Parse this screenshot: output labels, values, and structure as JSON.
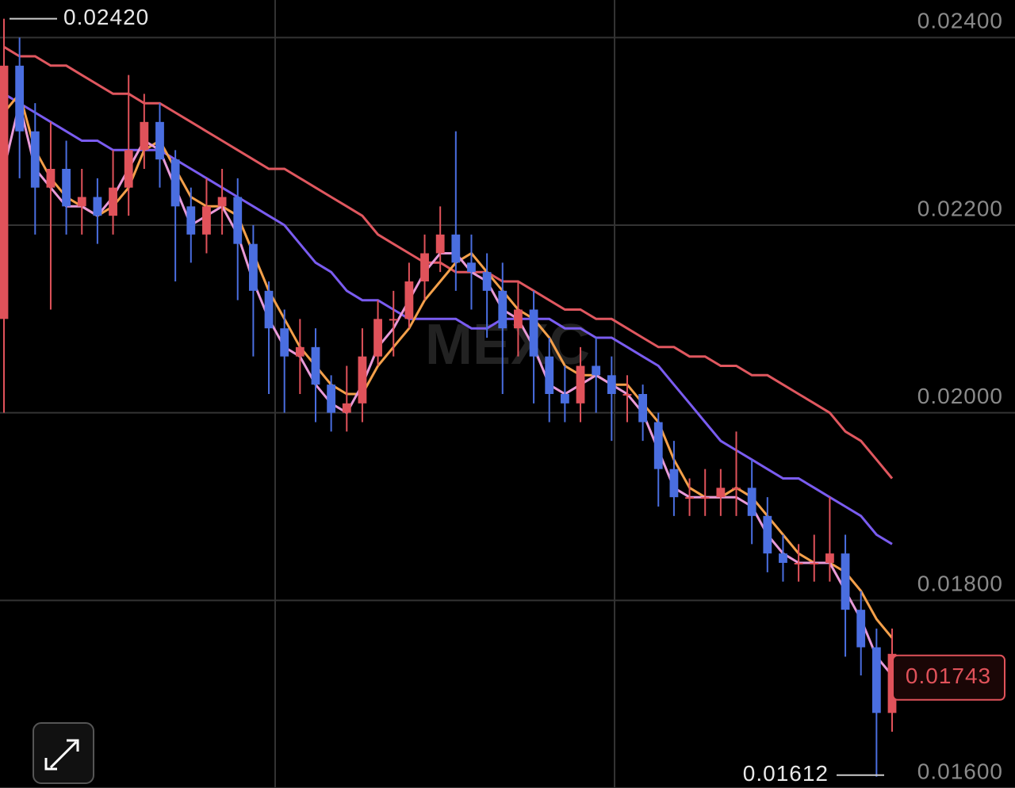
{
  "chart_data": {
    "type": "candlestick",
    "up_color": "#e0525a",
    "down_color": "#4a6ee0",
    "ylim": [
      0.016,
      0.0244
    ],
    "yticks": [
      {
        "value": 0.016,
        "label": "0.01600"
      },
      {
        "value": 0.018,
        "label": "0.01800"
      },
      {
        "value": 0.02,
        "label": "0.02000"
      },
      {
        "value": 0.022,
        "label": "0.02200"
      },
      {
        "value": 0.024,
        "label": "0.02400"
      }
    ],
    "grid": true,
    "watermark": "MEXC",
    "max_label": {
      "value": 0.0242,
      "label": "0.02420"
    },
    "min_label": {
      "value": 0.01612,
      "label": "0.01612"
    },
    "last_price": {
      "value": 0.01743,
      "label": "0.01743"
    },
    "open": [
      0.021,
      0.0237,
      0.023,
      0.0224,
      0.0226,
      0.0222,
      0.0223,
      0.0221,
      0.0224,
      0.0228,
      0.0231,
      0.0227,
      0.0222,
      0.0219,
      0.0222,
      0.0223,
      0.0218,
      0.0213,
      0.0209,
      0.0206,
      0.0207,
      0.0203,
      0.02,
      0.0201,
      0.0206,
      0.021,
      0.021,
      0.0214,
      0.0217,
      0.0219,
      0.0216,
      0.0215,
      0.0213,
      0.0209,
      0.0211,
      0.0206,
      0.0202,
      0.0201,
      0.0205,
      0.0204,
      0.0202,
      0.0202,
      0.0199,
      0.0194,
      0.0191,
      0.0191,
      0.0191,
      0.0192,
      0.0192,
      0.0189,
      0.0185,
      0.0184,
      0.0184,
      0.0184,
      0.0185,
      0.0179,
      0.0175,
      0.0168
    ],
    "high": [
      0.0242,
      0.024,
      0.0233,
      0.0231,
      0.0229,
      0.0226,
      0.0225,
      0.0228,
      0.0236,
      0.0234,
      0.0233,
      0.0228,
      0.0224,
      0.0225,
      0.0226,
      0.0225,
      0.022,
      0.0214,
      0.0211,
      0.021,
      0.0209,
      0.0204,
      0.0205,
      0.0209,
      0.0212,
      0.0213,
      0.0216,
      0.0219,
      0.0222,
      0.023,
      0.0219,
      0.0217,
      0.0216,
      0.0214,
      0.0213,
      0.0208,
      0.0205,
      0.0207,
      0.0208,
      0.0206,
      0.0204,
      0.0203,
      0.02,
      0.0197,
      0.0193,
      0.0194,
      0.0194,
      0.0198,
      0.0195,
      0.0191,
      0.0187,
      0.0186,
      0.0187,
      0.0191,
      0.0187,
      0.0181,
      0.0177,
      0.0177
    ],
    "low": [
      0.02,
      0.0225,
      0.0219,
      0.0211,
      0.0219,
      0.0219,
      0.0218,
      0.0219,
      0.0221,
      0.0226,
      0.0224,
      0.0214,
      0.0216,
      0.0217,
      0.0219,
      0.0212,
      0.0206,
      0.0202,
      0.02,
      0.0202,
      0.0199,
      0.0198,
      0.0198,
      0.0199,
      0.0205,
      0.0206,
      0.0209,
      0.0212,
      0.0215,
      0.0213,
      0.0211,
      0.0208,
      0.0202,
      0.0206,
      0.0201,
      0.0199,
      0.0199,
      0.0199,
      0.02,
      0.0197,
      0.0199,
      0.0197,
      0.019,
      0.0189,
      0.0189,
      0.0189,
      0.0189,
      0.0189,
      0.0186,
      0.0183,
      0.0182,
      0.0182,
      0.0182,
      0.0182,
      0.0174,
      0.0172,
      0.01612,
      0.0166
    ],
    "close": [
      0.0237,
      0.023,
      0.0224,
      0.0226,
      0.0222,
      0.0223,
      0.0221,
      0.0224,
      0.0228,
      0.0231,
      0.0227,
      0.0222,
      0.0219,
      0.0222,
      0.0223,
      0.0218,
      0.0213,
      0.0209,
      0.0206,
      0.0207,
      0.0203,
      0.02,
      0.0201,
      0.0206,
      0.021,
      0.021,
      0.0214,
      0.0217,
      0.0219,
      0.0216,
      0.0215,
      0.0213,
      0.0209,
      0.0211,
      0.0206,
      0.0202,
      0.0201,
      0.0205,
      0.0204,
      0.0202,
      0.0202,
      0.0199,
      0.0194,
      0.0191,
      0.0191,
      0.0191,
      0.0192,
      0.0192,
      0.0189,
      0.0185,
      0.0184,
      0.0184,
      0.0184,
      0.0185,
      0.0179,
      0.0175,
      0.0168,
      0.01743
    ],
    "series": [
      {
        "color": "#e0575f",
        "values": [
          0.0239,
          0.0238,
          0.0238,
          0.0237,
          0.0237,
          0.0236,
          0.0235,
          0.0234,
          0.0234,
          0.0233,
          0.0233,
          0.0232,
          0.0231,
          0.023,
          0.0229,
          0.0228,
          0.0227,
          0.0226,
          0.0226,
          0.0225,
          0.0224,
          0.0223,
          0.0222,
          0.0221,
          0.0219,
          0.0218,
          0.0217,
          0.0216,
          0.0216,
          0.0215,
          0.0215,
          0.0215,
          0.0214,
          0.0214,
          0.0213,
          0.0212,
          0.0211,
          0.0211,
          0.021,
          0.021,
          0.0209,
          0.0208,
          0.0207,
          0.0207,
          0.0206,
          0.0206,
          0.0205,
          0.0205,
          0.0204,
          0.0204,
          0.0203,
          0.0202,
          0.0201,
          0.02,
          0.0198,
          0.0197,
          0.0195,
          0.0193
        ]
      },
      {
        "color": "#7a5cf0",
        "values": [
          0.0234,
          0.0233,
          0.0232,
          0.0231,
          0.023,
          0.0229,
          0.0229,
          0.0228,
          0.0228,
          0.0228,
          0.0228,
          0.0227,
          0.0226,
          0.0225,
          0.0224,
          0.0223,
          0.0222,
          0.0221,
          0.022,
          0.0218,
          0.0216,
          0.0215,
          0.0213,
          0.0212,
          0.0212,
          0.0211,
          0.021,
          0.021,
          0.021,
          0.021,
          0.0209,
          0.0209,
          0.021,
          0.021,
          0.021,
          0.021,
          0.0209,
          0.0209,
          0.0208,
          0.0208,
          0.0207,
          0.0206,
          0.0205,
          0.0203,
          0.0201,
          0.0199,
          0.0197,
          0.0196,
          0.0195,
          0.0194,
          0.0193,
          0.0193,
          0.0192,
          0.0191,
          0.019,
          0.0189,
          0.0187,
          0.0186
        ]
      },
      {
        "color": "#f4a04a",
        "values": [
          0.0232,
          0.0234,
          0.0228,
          0.0225,
          0.0223,
          0.0222,
          0.0221,
          0.0222,
          0.0224,
          0.0228,
          0.0229,
          0.0226,
          0.0223,
          0.0222,
          0.0222,
          0.0221,
          0.0217,
          0.0213,
          0.021,
          0.0207,
          0.0205,
          0.0203,
          0.0202,
          0.0202,
          0.0205,
          0.0207,
          0.0209,
          0.0212,
          0.0214,
          0.0216,
          0.0217,
          0.0215,
          0.0213,
          0.0211,
          0.021,
          0.0208,
          0.0205,
          0.0204,
          0.0204,
          0.0203,
          0.0203,
          0.0201,
          0.0199,
          0.0195,
          0.0192,
          0.0191,
          0.0191,
          0.0192,
          0.0191,
          0.0189,
          0.0187,
          0.0185,
          0.0184,
          0.0184,
          0.0183,
          0.0181,
          0.0178,
          0.0176
        ]
      },
      {
        "color": "#e89ad8",
        "values": [
          0.0226,
          0.0233,
          0.0226,
          0.0224,
          0.0222,
          0.0222,
          0.0221,
          0.0223,
          0.0226,
          0.0229,
          0.0228,
          0.0224,
          0.022,
          0.0221,
          0.0222,
          0.0219,
          0.0214,
          0.021,
          0.0207,
          0.0206,
          0.0203,
          0.0201,
          0.02,
          0.0203,
          0.0207,
          0.0209,
          0.0212,
          0.0215,
          0.0217,
          0.0217,
          0.0215,
          0.0214,
          0.0211,
          0.021,
          0.0207,
          0.0203,
          0.0202,
          0.0203,
          0.0204,
          0.0203,
          0.0202,
          0.02,
          0.0196,
          0.0192,
          0.0191,
          0.0191,
          0.0191,
          0.0191,
          0.019,
          0.0187,
          0.0185,
          0.0184,
          0.0184,
          0.0184,
          0.0181,
          0.0178,
          0.0174,
          0.0172
        ]
      }
    ]
  }
}
